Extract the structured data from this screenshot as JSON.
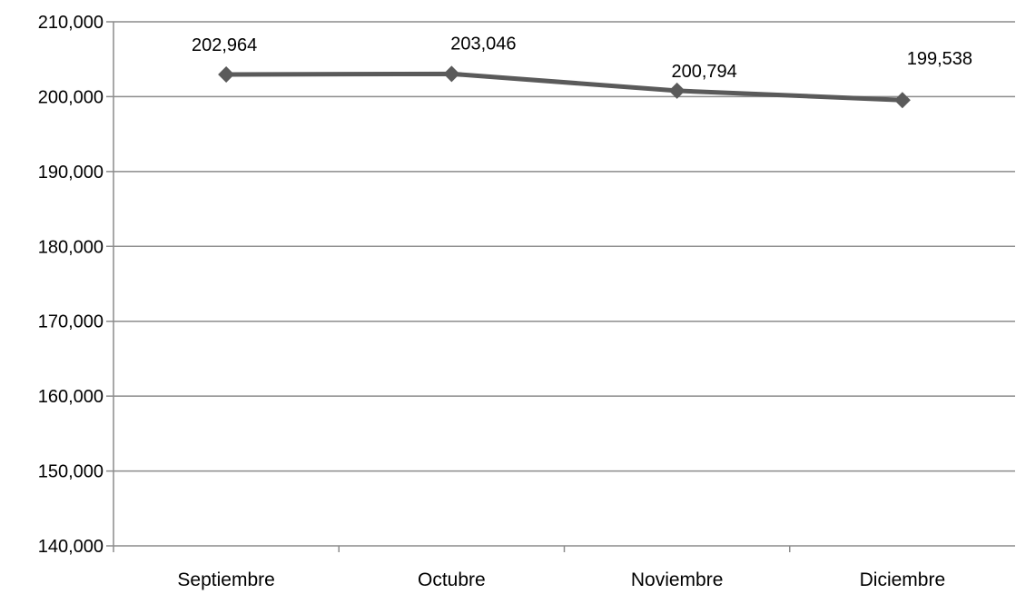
{
  "chart_data": {
    "type": "line",
    "categories": [
      "Septiembre",
      "Octubre",
      "Noviembre",
      "Diciembre"
    ],
    "series": [
      {
        "values": [
          202964,
          203046,
          200794,
          199538
        ]
      }
    ],
    "data_labels": [
      "202,964",
      "203,046",
      "200,794",
      "199,538"
    ],
    "y_ticks": [
      "140,000",
      "150,000",
      "160,000",
      "170,000",
      "180,000",
      "190,000",
      "200,000",
      "210,000"
    ],
    "ylim": [
      140000,
      210000
    ],
    "grid": true,
    "legend": "none",
    "colors": {
      "line": "#5a5a5a",
      "grid": "#8c8c8c",
      "axis": "#8c8c8c"
    }
  }
}
